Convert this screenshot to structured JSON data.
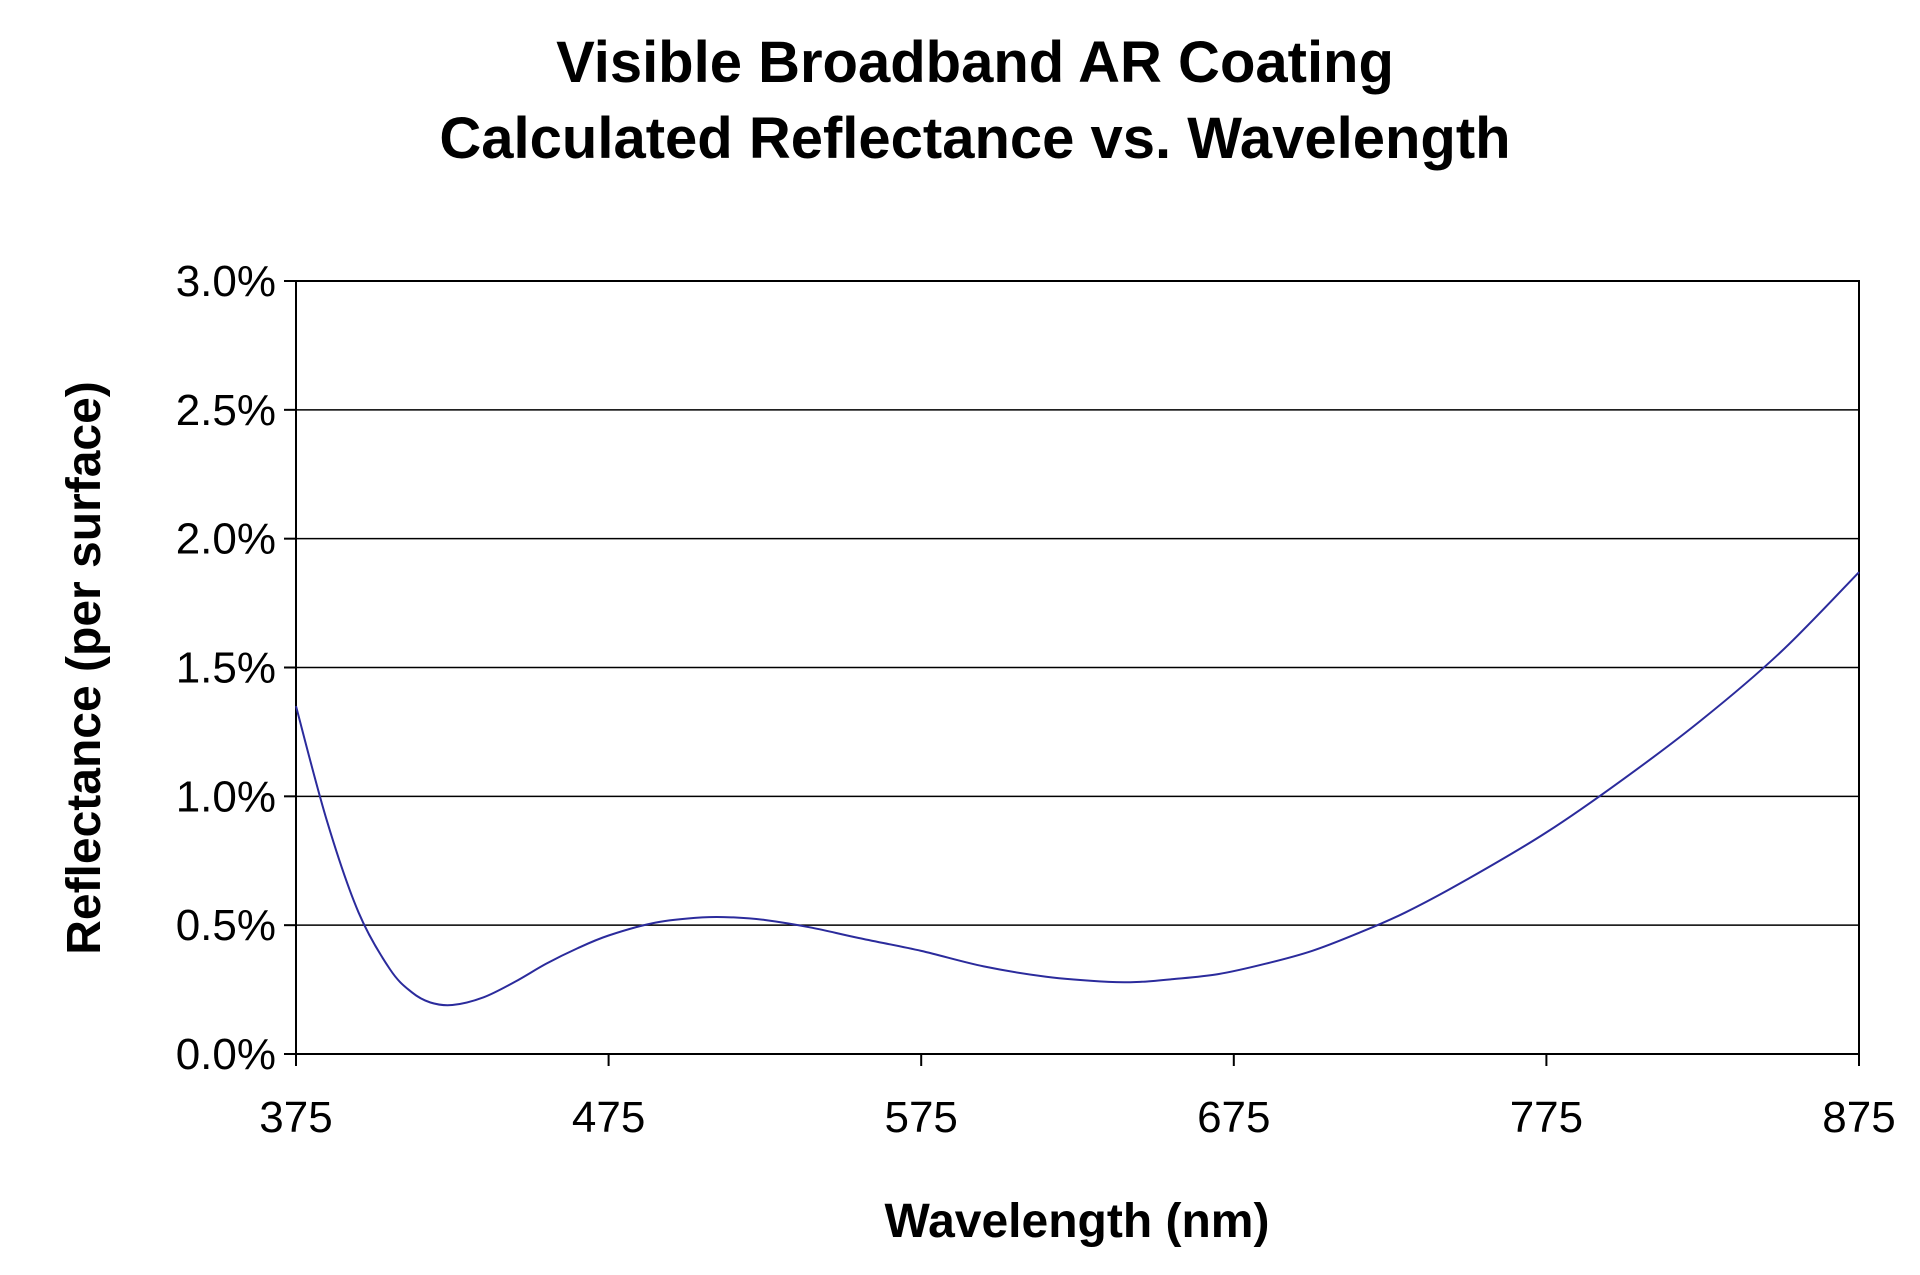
{
  "chart_data": {
    "type": "line",
    "title": [
      "Visible Broadband AR Coating",
      "Calculated Reflectance vs. Wavelength"
    ],
    "xlabel": "Wavelength (nm)",
    "ylabel": "Reflectance (per surface)",
    "xlim": [
      375,
      875
    ],
    "ylim": [
      0.0,
      3.0
    ],
    "x_ticks": [
      "375",
      "475",
      "575",
      "675",
      "775",
      "875"
    ],
    "y_ticks": [
      "0.0%",
      "0.5%",
      "1.0%",
      "1.5%",
      "2.0%",
      "2.5%",
      "3.0%"
    ],
    "grid": "horizontal",
    "legend": "none",
    "line_color": "#2b2b9c",
    "series": [
      {
        "x": [
          375,
          385,
          395,
          405,
          412,
          418,
          425,
          435,
          445,
          455,
          465,
          475,
          490,
          505,
          515,
          525,
          540,
          555,
          575,
          595,
          615,
          635,
          645,
          655,
          670,
          685,
          700,
          715,
          730,
          750,
          775,
          800,
          825,
          850,
          875
        ],
        "y": [
          1.35,
          0.9,
          0.55,
          0.33,
          0.24,
          0.2,
          0.19,
          0.22,
          0.28,
          0.35,
          0.41,
          0.46,
          0.51,
          0.53,
          0.53,
          0.52,
          0.49,
          0.45,
          0.4,
          0.34,
          0.3,
          0.28,
          0.28,
          0.29,
          0.31,
          0.35,
          0.4,
          0.47,
          0.55,
          0.68,
          0.86,
          1.07,
          1.3,
          1.56,
          1.87
        ]
      }
    ]
  }
}
